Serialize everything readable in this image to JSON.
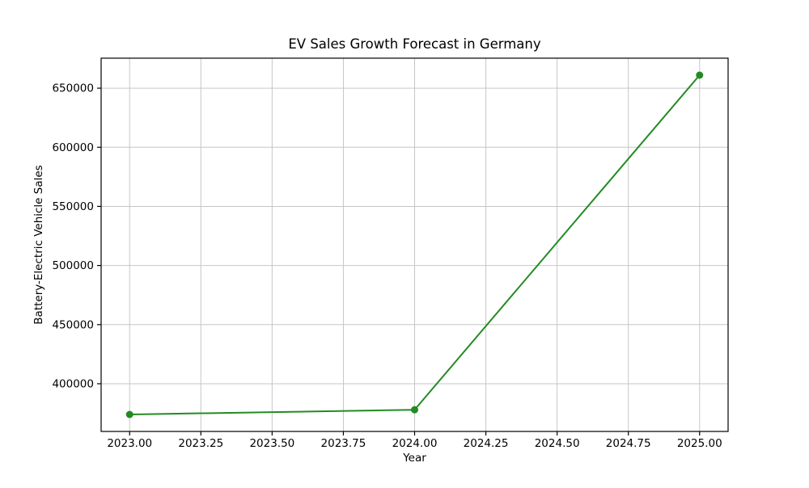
{
  "colors": {
    "line": "#228B22",
    "grid": "#c6c6c6",
    "spine": "#000000",
    "text": "#000000",
    "background": "#ffffff"
  },
  "chart_data": {
    "type": "line",
    "title": "EV Sales Growth Forecast in Germany",
    "xlabel": "Year",
    "ylabel": "Battery-Electric Vehicle Sales",
    "x": [
      2023,
      2024,
      2025
    ],
    "values": [
      374000,
      378000,
      661000
    ],
    "series_name": "Battery-Electric Vehicle Sales",
    "marker": "circle",
    "grid": true,
    "legend": false,
    "xlim": [
      2022.9,
      2025.1
    ],
    "ylim": [
      359650,
      675350
    ],
    "x_ticks": {
      "values": [
        2023.0,
        2023.25,
        2023.5,
        2023.75,
        2024.0,
        2024.25,
        2024.5,
        2024.75,
        2025.0
      ],
      "labels": [
        "2023.00",
        "2023.25",
        "2023.50",
        "2023.75",
        "2024.00",
        "2024.25",
        "2024.50",
        "2024.75",
        "2025.00"
      ]
    },
    "y_ticks": {
      "values": [
        400000,
        450000,
        500000,
        550000,
        600000,
        650000
      ],
      "labels": [
        "400000",
        "450000",
        "500000",
        "550000",
        "600000",
        "650000"
      ]
    }
  }
}
